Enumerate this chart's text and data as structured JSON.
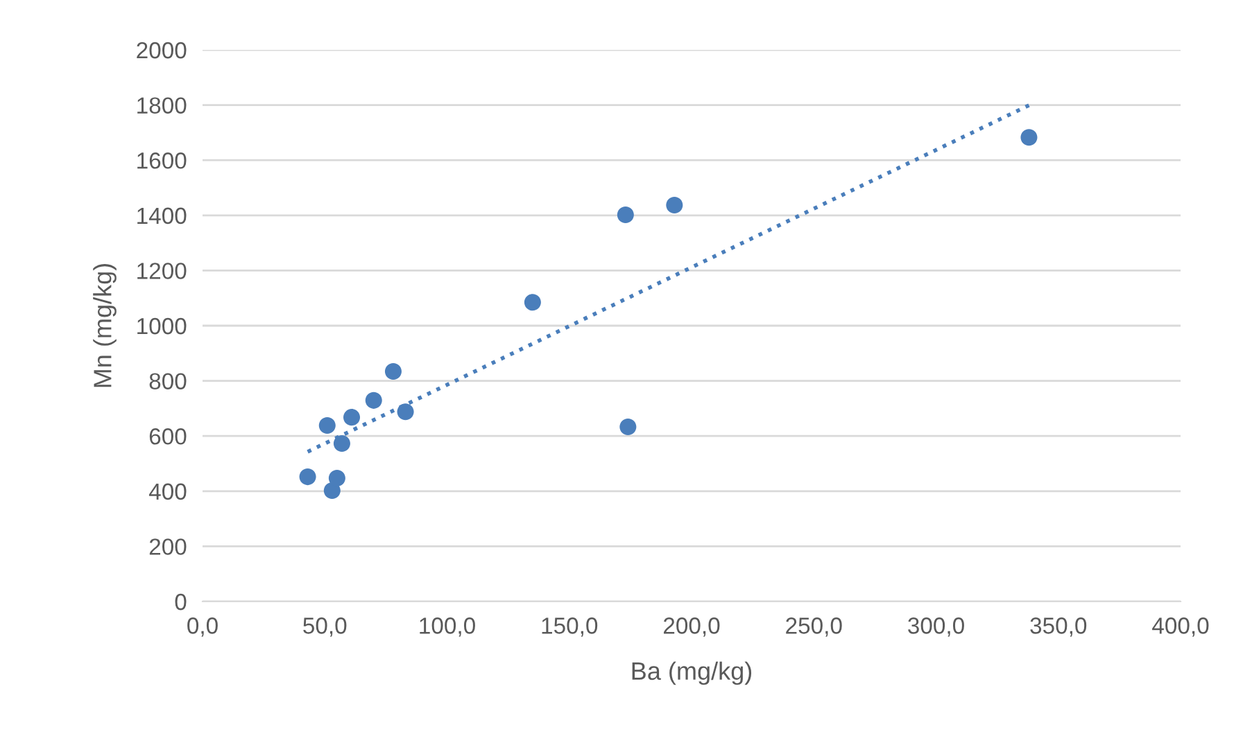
{
  "chart_data": {
    "type": "scatter",
    "xlabel": "Ba (mg/kg)",
    "ylabel": "Mn (mg/kg)",
    "xlim": [
      0,
      400
    ],
    "ylim": [
      0,
      2000
    ],
    "xticks": [
      {
        "value": 0,
        "label": "0,0"
      },
      {
        "value": 50,
        "label": "50,0"
      },
      {
        "value": 100,
        "label": "100,0"
      },
      {
        "value": 150,
        "label": "150,0"
      },
      {
        "value": 200,
        "label": "200,0"
      },
      {
        "value": 250,
        "label": "250,0"
      },
      {
        "value": 300,
        "label": "300,0"
      },
      {
        "value": 350,
        "label": "350,0"
      },
      {
        "value": 400,
        "label": "400,0"
      }
    ],
    "yticks": [
      0,
      200,
      400,
      600,
      800,
      1000,
      1200,
      1400,
      1600,
      1800,
      2000
    ],
    "grid": "y",
    "legend": false,
    "series": [
      {
        "color": "#4a7ebb",
        "marker": "circle",
        "x": [
          43,
          51,
          53,
          55,
          57,
          61,
          70,
          78,
          83,
          135,
          173,
          174,
          193,
          338
        ],
        "values": [
          452,
          638,
          402,
          447,
          573,
          668,
          729,
          834,
          688,
          1085,
          1402,
          633,
          1437,
          1683
        ]
      },
      {
        "type": "line",
        "color": "#4a7ebb",
        "line_style": "dotted",
        "x": [
          43,
          338
        ],
        "values": [
          543,
          1799
        ]
      }
    ]
  }
}
